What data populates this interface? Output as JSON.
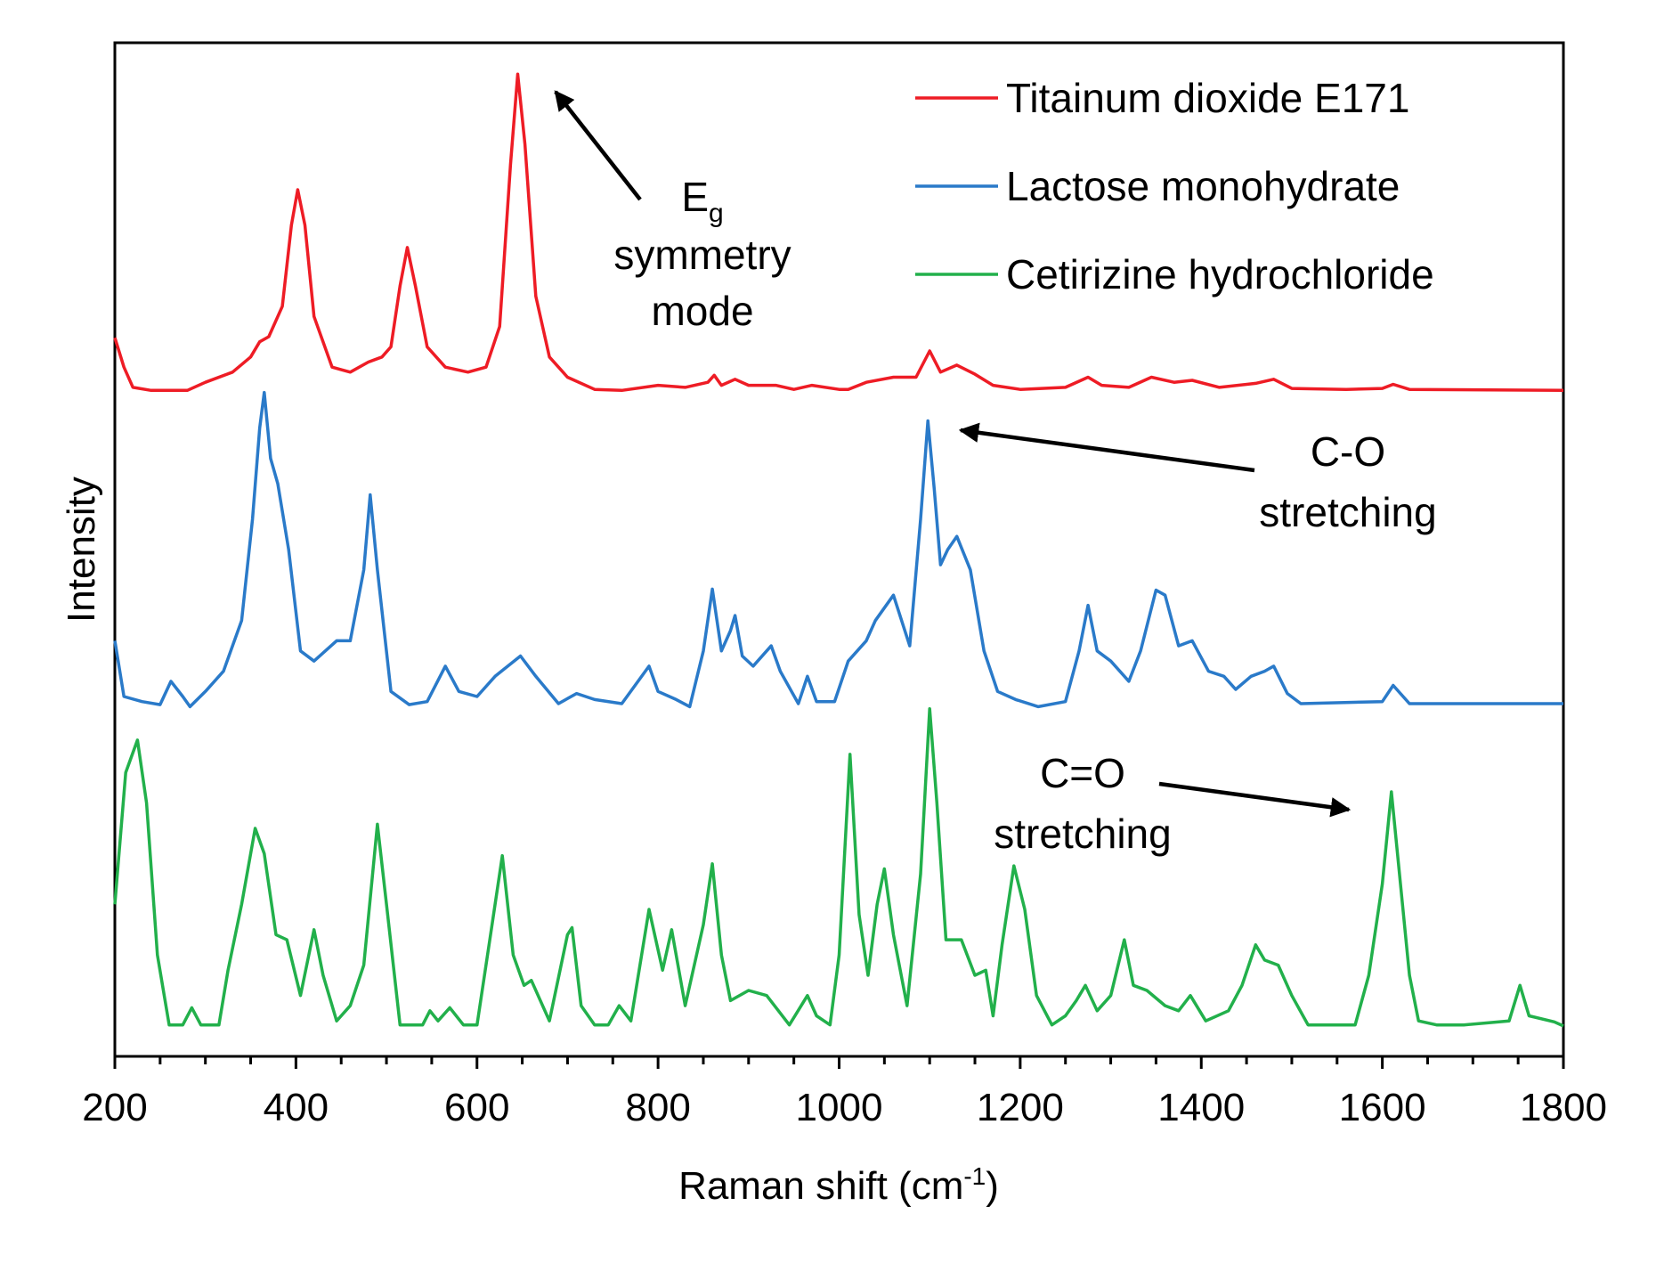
{
  "chart_data": {
    "type": "line",
    "x_label": {
      "text": "Raman shift (cm",
      "superscript": "-1",
      "end": ")"
    },
    "y_label": "Intensity",
    "xlim": [
      200,
      1800
    ],
    "xticks": [
      200,
      400,
      600,
      800,
      1000,
      1200,
      1400,
      1600,
      1800
    ],
    "xminorticks": [
      250,
      300,
      350,
      450,
      500,
      550,
      650,
      700,
      750,
      850,
      900,
      950,
      1050,
      1100,
      1150,
      1250,
      1300,
      1350,
      1450,
      1500,
      1550,
      1650,
      1700,
      1750
    ],
    "ylim": [
      0,
      100
    ],
    "legend": "upper right",
    "series": [
      {
        "name": "Titainum dioxide E171",
        "color": "#ee1c25",
        "x": [
          200,
          210,
          220,
          240,
          280,
          300,
          330,
          350,
          360,
          370,
          385,
          395,
          402,
          410,
          420,
          440,
          460,
          480,
          495,
          505,
          515,
          523,
          532,
          545,
          565,
          590,
          610,
          625,
          637,
          645,
          653,
          665,
          680,
          700,
          730,
          760,
          800,
          830,
          855,
          862,
          870,
          885,
          900,
          930,
          950,
          970,
          1000,
          1010,
          1030,
          1060,
          1085,
          1100,
          1112,
          1130,
          1150,
          1170,
          1200,
          1250,
          1275,
          1290,
          1320,
          1345,
          1370,
          1390,
          1420,
          1460,
          1480,
          1500,
          1560,
          1600,
          1612,
          1630,
          1800
        ],
        "values": [
          70.9,
          68,
          66,
          65.7,
          65.7,
          66.5,
          67.5,
          69,
          70.5,
          71,
          74,
          82,
          85.5,
          82,
          73,
          68,
          67.5,
          68.5,
          69,
          70,
          76,
          79.8,
          76,
          70,
          68,
          67.5,
          68,
          72,
          88,
          96.9,
          90,
          75,
          69,
          67,
          65.8,
          65.7,
          66.2,
          66,
          66.5,
          67.2,
          66.2,
          66.8,
          66.2,
          66.2,
          65.8,
          66.2,
          65.8,
          65.8,
          66.5,
          67,
          67,
          69.6,
          67.5,
          68.2,
          67.3,
          66.2,
          65.8,
          66,
          67,
          66.2,
          66,
          67,
          66.5,
          66.7,
          66,
          66.4,
          66.8,
          65.9,
          65.8,
          65.9,
          66.3,
          65.8,
          65.7
        ]
      },
      {
        "name": "Lactose monohydrate",
        "color": "#2a7ac9",
        "x": [
          200,
          210,
          230,
          250,
          262,
          275,
          283,
          300,
          320,
          340,
          352,
          360,
          365,
          372,
          380,
          392,
          405,
          420,
          445,
          460,
          475,
          482,
          490,
          505,
          525,
          545,
          565,
          580,
          600,
          620,
          648,
          665,
          690,
          710,
          730,
          760,
          790,
          800,
          820,
          835,
          850,
          860,
          870,
          880,
          885,
          893,
          905,
          925,
          935,
          955,
          965,
          975,
          995,
          1010,
          1030,
          1040,
          1060,
          1078,
          1090,
          1098,
          1105,
          1112,
          1120,
          1130,
          1145,
          1160,
          1175,
          1195,
          1220,
          1250,
          1265,
          1275,
          1285,
          1300,
          1320,
          1333,
          1350,
          1360,
          1375,
          1390,
          1408,
          1425,
          1438,
          1455,
          1470,
          1480,
          1495,
          1510,
          1600,
          1612,
          1630,
          1800
        ],
        "values": [
          41,
          35.5,
          35,
          34.7,
          37,
          35.5,
          34.5,
          36,
          38,
          43,
          53,
          62,
          65.5,
          59,
          56.5,
          50,
          40,
          39,
          41,
          41,
          48,
          55.4,
          48,
          36,
          34.7,
          35,
          38.5,
          36,
          35.5,
          37.5,
          39.5,
          37.5,
          34.8,
          35.8,
          35.2,
          34.8,
          38.5,
          36,
          35.2,
          34.5,
          40,
          46.1,
          40,
          42,
          43.5,
          39.5,
          38.5,
          40.5,
          38,
          34.8,
          37.5,
          35,
          35,
          39,
          41,
          43,
          45.5,
          40.5,
          53,
          62.7,
          56,
          48.5,
          50,
          51.3,
          48,
          40,
          36,
          35.2,
          34.5,
          35,
          40,
          44.5,
          40,
          39,
          37,
          40,
          46,
          45.5,
          40.5,
          41,
          38,
          37.5,
          36.2,
          37.5,
          38,
          38.5,
          35.8,
          34.8,
          35,
          36.6,
          34.8,
          34.8
        ]
      },
      {
        "name": "Cetirizine hydrochloride",
        "color": "#22b04b",
        "x": [
          200,
          212,
          225,
          235,
          247,
          260,
          275,
          285,
          295,
          315,
          325,
          340,
          355,
          365,
          378,
          390,
          405,
          420,
          430,
          445,
          460,
          475,
          490,
          500,
          515,
          540,
          548,
          557,
          570,
          585,
          600,
          615,
          628,
          640,
          652,
          660,
          680,
          700,
          705,
          715,
          730,
          745,
          757,
          770,
          790,
          805,
          815,
          830,
          850,
          860,
          870,
          880,
          900,
          920,
          945,
          965,
          975,
          990,
          1000,
          1012,
          1022,
          1032,
          1042,
          1050,
          1060,
          1075,
          1090,
          1100,
          1108,
          1118,
          1135,
          1150,
          1162,
          1170,
          1180,
          1193,
          1205,
          1218,
          1235,
          1250,
          1262,
          1272,
          1285,
          1300,
          1315,
          1325,
          1340,
          1360,
          1375,
          1388,
          1405,
          1430,
          1445,
          1460,
          1470,
          1485,
          1500,
          1518,
          1570,
          1585,
          1600,
          1610,
          1620,
          1630,
          1640,
          1660,
          1690,
          1740,
          1752,
          1762,
          1790,
          1800
        ],
        "values": [
          15,
          28,
          31.2,
          25,
          10,
          3.1,
          3.1,
          4.8,
          3.1,
          3.1,
          8.5,
          15,
          22.5,
          20,
          12,
          11.5,
          6,
          12.5,
          8,
          3.5,
          5,
          9,
          22.9,
          15,
          3.1,
          3.1,
          4.5,
          3.5,
          4.8,
          3.1,
          3.1,
          12,
          19.8,
          10,
          7,
          7.5,
          3.5,
          12,
          12.7,
          5,
          3.1,
          3.1,
          5,
          3.5,
          14.5,
          8.5,
          12.5,
          5,
          13,
          19,
          10,
          5.5,
          6.5,
          6,
          3.1,
          6,
          4,
          3.1,
          10,
          29.8,
          14,
          8,
          15,
          18.5,
          12,
          5,
          18,
          34.3,
          25,
          11.5,
          11.5,
          8,
          8.5,
          4,
          11,
          18.8,
          14.5,
          6,
          3.1,
          4,
          5.5,
          7,
          4.5,
          6,
          11.5,
          7,
          6.5,
          5,
          4.5,
          6,
          3.5,
          4.5,
          7,
          11,
          9.5,
          9,
          6,
          3.1,
          3.1,
          8,
          17,
          26.1,
          17,
          8,
          3.5,
          3.1,
          3.1,
          3.5,
          7,
          4,
          3.4,
          3
        ]
      }
    ],
    "annotations": [
      {
        "lines": [
          "E",
          "symmetry",
          "mode"
        ],
        "subscript": "g"
      },
      {
        "lines": [
          "C-O",
          "stretching"
        ]
      },
      {
        "lines": [
          "C=O",
          "stretching"
        ]
      }
    ]
  }
}
